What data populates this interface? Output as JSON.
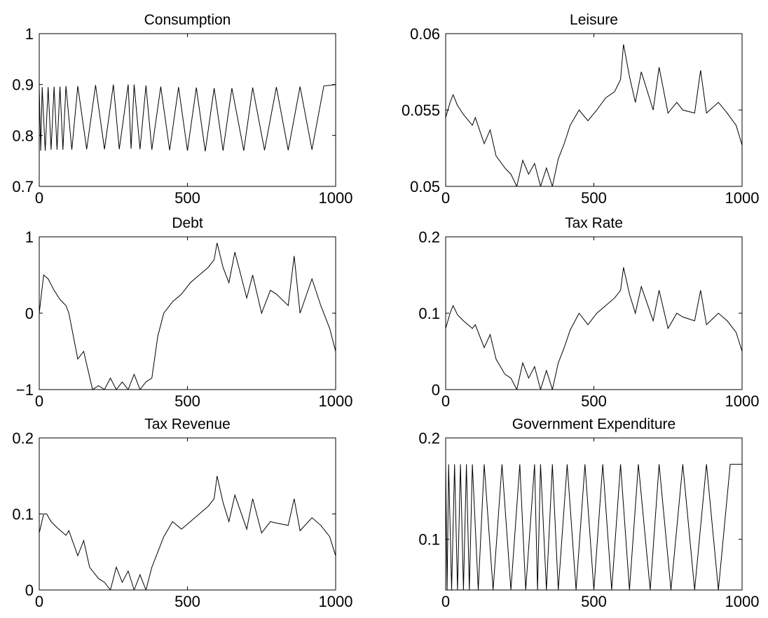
{
  "chart_data": [
    {
      "type": "line",
      "title": "Consumption",
      "xlim": [
        0,
        1000
      ],
      "ylim": [
        0.7,
        1
      ],
      "xticks": [
        0,
        500,
        1000
      ],
      "xtick_labels": [
        "0",
        "500",
        "1000"
      ],
      "yticks": [
        0.7,
        0.8,
        0.9,
        1
      ],
      "ytick_labels": [
        "0.7",
        "0.8",
        "0.9",
        "1"
      ],
      "grid": false,
      "x": [
        0,
        5,
        10,
        20,
        30,
        40,
        50,
        60,
        70,
        80,
        90,
        110,
        130,
        160,
        190,
        220,
        250,
        270,
        300,
        310,
        320,
        340,
        360,
        380,
        410,
        440,
        470,
        500,
        530,
        560,
        590,
        620,
        650,
        690,
        720,
        760,
        800,
        840,
        880,
        920,
        960,
        1000
      ],
      "series": [
        {
          "values": [
            0.895,
            0.77,
            0.895,
            0.77,
            0.895,
            0.772,
            0.896,
            0.772,
            0.896,
            0.772,
            0.897,
            0.772,
            0.897,
            0.773,
            0.899,
            0.773,
            0.9,
            0.773,
            0.9,
            0.774,
            0.9,
            0.773,
            0.898,
            0.772,
            0.896,
            0.771,
            0.895,
            0.77,
            0.894,
            0.769,
            0.893,
            0.77,
            0.893,
            0.77,
            0.894,
            0.771,
            0.895,
            0.771,
            0.896,
            0.772,
            0.897,
            0.9
          ]
        }
      ]
    },
    {
      "type": "line",
      "title": "Leisure",
      "xlim": [
        0,
        1000
      ],
      "ylim": [
        0.05,
        0.06
      ],
      "xticks": [
        0,
        500,
        1000
      ],
      "xtick_labels": [
        "0",
        "500",
        "1000"
      ],
      "yticks": [
        0.05,
        0.055,
        0.06
      ],
      "ytick_labels": [
        "0.05",
        "0.055",
        "0.06"
      ],
      "grid": false,
      "x": [
        0,
        15,
        25,
        40,
        60,
        90,
        100,
        130,
        150,
        170,
        200,
        220,
        240,
        260,
        280,
        300,
        320,
        340,
        360,
        380,
        400,
        420,
        450,
        480,
        510,
        540,
        570,
        590,
        600,
        620,
        640,
        660,
        700,
        720,
        750,
        780,
        800,
        840,
        860,
        880,
        920,
        950,
        980,
        1000
      ],
      "series": [
        {
          "values": [
            0.0545,
            0.0555,
            0.056,
            0.0553,
            0.0547,
            0.054,
            0.0545,
            0.0528,
            0.0537,
            0.052,
            0.0512,
            0.0508,
            0.05,
            0.0517,
            0.0508,
            0.0515,
            0.05,
            0.0512,
            0.05,
            0.0518,
            0.0528,
            0.054,
            0.055,
            0.0543,
            0.055,
            0.0558,
            0.0562,
            0.057,
            0.0593,
            0.0572,
            0.0555,
            0.0575,
            0.055,
            0.0578,
            0.0548,
            0.0555,
            0.055,
            0.0548,
            0.0576,
            0.0548,
            0.0555,
            0.0548,
            0.054,
            0.0527
          ]
        }
      ]
    },
    {
      "type": "line",
      "title": "Debt",
      "xlim": [
        0,
        1000
      ],
      "ylim": [
        -1,
        1
      ],
      "xticks": [
        0,
        500,
        1000
      ],
      "xtick_labels": [
        "0",
        "500",
        "1000"
      ],
      "yticks": [
        -1,
        0,
        1
      ],
      "ytick_labels": [
        "−1",
        "0",
        "1"
      ],
      "grid": false,
      "x": [
        0,
        15,
        30,
        50,
        70,
        90,
        100,
        130,
        150,
        180,
        200,
        220,
        240,
        260,
        280,
        300,
        320,
        340,
        360,
        380,
        400,
        420,
        450,
        480,
        510,
        540,
        570,
        590,
        600,
        620,
        640,
        660,
        700,
        720,
        750,
        780,
        800,
        840,
        860,
        880,
        920,
        950,
        980,
        1000
      ],
      "series": [
        {
          "values": [
            0.0,
            0.5,
            0.45,
            0.3,
            0.18,
            0.1,
            0.0,
            -0.6,
            -0.5,
            -1.0,
            -0.95,
            -1.0,
            -0.85,
            -1.0,
            -0.9,
            -1.0,
            -0.8,
            -1.0,
            -0.9,
            -0.85,
            -0.3,
            0.0,
            0.15,
            0.25,
            0.4,
            0.5,
            0.6,
            0.7,
            0.92,
            0.6,
            0.4,
            0.8,
            0.2,
            0.5,
            0.0,
            0.3,
            0.25,
            0.1,
            0.75,
            0.0,
            0.45,
            0.1,
            -0.2,
            -0.5
          ]
        }
      ]
    },
    {
      "type": "line",
      "title": "Tax Rate",
      "xlim": [
        0,
        1000
      ],
      "ylim": [
        0,
        0.2
      ],
      "xticks": [
        0,
        500,
        1000
      ],
      "xtick_labels": [
        "0",
        "500",
        "1000"
      ],
      "yticks": [
        0,
        0.1,
        0.2
      ],
      "ytick_labels": [
        "0",
        "0.1",
        "0.2"
      ],
      "grid": false,
      "x": [
        0,
        15,
        25,
        40,
        60,
        90,
        100,
        130,
        150,
        170,
        200,
        220,
        240,
        260,
        280,
        300,
        320,
        340,
        360,
        380,
        400,
        420,
        450,
        480,
        510,
        540,
        570,
        590,
        600,
        620,
        640,
        660,
        700,
        720,
        750,
        780,
        800,
        840,
        860,
        880,
        920,
        950,
        980,
        1000
      ],
      "series": [
        {
          "values": [
            0.08,
            0.1,
            0.11,
            0.098,
            0.09,
            0.08,
            0.085,
            0.055,
            0.072,
            0.04,
            0.02,
            0.015,
            0.0,
            0.035,
            0.015,
            0.03,
            0.0,
            0.025,
            0.0,
            0.035,
            0.055,
            0.078,
            0.1,
            0.085,
            0.1,
            0.11,
            0.12,
            0.13,
            0.16,
            0.125,
            0.1,
            0.135,
            0.09,
            0.13,
            0.08,
            0.1,
            0.095,
            0.09,
            0.13,
            0.085,
            0.1,
            0.09,
            0.075,
            0.05
          ]
        }
      ]
    },
    {
      "type": "line",
      "title": "Tax Revenue",
      "xlim": [
        0,
        1000
      ],
      "ylim": [
        0,
        0.2
      ],
      "xticks": [
        0,
        500,
        1000
      ],
      "xtick_labels": [
        "0",
        "500",
        "1000"
      ],
      "yticks": [
        0,
        0.1,
        0.2
      ],
      "ytick_labels": [
        "0",
        "0.1",
        "0.2"
      ],
      "grid": false,
      "x": [
        0,
        15,
        25,
        40,
        60,
        90,
        100,
        130,
        150,
        170,
        200,
        220,
        240,
        260,
        280,
        300,
        320,
        340,
        360,
        380,
        400,
        420,
        450,
        480,
        510,
        540,
        570,
        590,
        600,
        620,
        640,
        660,
        700,
        720,
        750,
        780,
        800,
        840,
        860,
        880,
        920,
        950,
        980,
        1000
      ],
      "series": [
        {
          "values": [
            0.075,
            0.1,
            0.1,
            0.09,
            0.082,
            0.072,
            0.078,
            0.045,
            0.065,
            0.03,
            0.015,
            0.01,
            0.0,
            0.03,
            0.01,
            0.025,
            0.0,
            0.02,
            0.0,
            0.03,
            0.05,
            0.07,
            0.09,
            0.08,
            0.09,
            0.1,
            0.11,
            0.12,
            0.15,
            0.115,
            0.09,
            0.125,
            0.08,
            0.12,
            0.075,
            0.09,
            0.088,
            0.085,
            0.12,
            0.078,
            0.095,
            0.085,
            0.07,
            0.045
          ]
        }
      ]
    },
    {
      "type": "line",
      "title": "Government Expenditure",
      "xlim": [
        0,
        1000
      ],
      "ylim": [
        0.05,
        0.2
      ],
      "xticks": [
        0,
        500,
        1000
      ],
      "xtick_labels": [
        "0",
        "500",
        "1000"
      ],
      "yticks": [
        0.1,
        0.2
      ],
      "ytick_labels": [
        "0.1",
        "0.2"
      ],
      "grid": false,
      "x": [
        0,
        5,
        10,
        20,
        30,
        40,
        50,
        60,
        70,
        80,
        90,
        110,
        130,
        160,
        190,
        220,
        250,
        270,
        300,
        310,
        320,
        340,
        360,
        380,
        410,
        440,
        470,
        500,
        530,
        560,
        590,
        620,
        650,
        690,
        720,
        760,
        800,
        840,
        880,
        920,
        960,
        1000
      ],
      "series": [
        {
          "values": [
            0.174,
            0.05,
            0.174,
            0.05,
            0.174,
            0.05,
            0.174,
            0.05,
            0.174,
            0.05,
            0.174,
            0.05,
            0.174,
            0.05,
            0.174,
            0.05,
            0.174,
            0.05,
            0.174,
            0.05,
            0.174,
            0.05,
            0.174,
            0.05,
            0.174,
            0.05,
            0.174,
            0.05,
            0.174,
            0.05,
            0.174,
            0.05,
            0.174,
            0.05,
            0.174,
            0.05,
            0.174,
            0.05,
            0.174,
            0.05,
            0.174,
            0.174
          ]
        }
      ]
    }
  ]
}
